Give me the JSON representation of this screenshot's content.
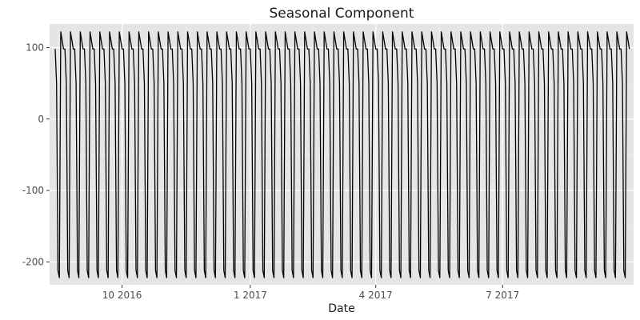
{
  "chart_data": {
    "type": "line",
    "title": "Seasonal Component",
    "xlabel": "Date",
    "ylabel": "",
    "x_start": "2016-08-14",
    "x_end": "2017-09-30",
    "xlim": [
      "2016-08-10",
      "2017-10-03"
    ],
    "ylim": [
      -232,
      133
    ],
    "x_ticks": [
      {
        "date": "2016-10-01",
        "label": "10 2016"
      },
      {
        "date": "2017-01-01",
        "label": "1 2017"
      },
      {
        "date": "2017-04-01",
        "label": "4 2017"
      },
      {
        "date": "2017-07-01",
        "label": "7 2017"
      }
    ],
    "y_ticks": [
      {
        "value": 100,
        "label": "100"
      },
      {
        "value": 0,
        "label": "0"
      },
      {
        "value": -100,
        "label": "-100"
      },
      {
        "value": -200,
        "label": "-200"
      }
    ],
    "period_days": 7,
    "weekly_pattern": [
      98,
      50,
      -212,
      -222,
      122,
      110,
      98
    ],
    "grid": true,
    "legend": "none",
    "colors": {
      "panel_background": "#e5e5e5",
      "grid_major": "#ffffff",
      "grid_minor": "#f0f0f0",
      "line": "#000000",
      "tick": "#333333"
    }
  }
}
